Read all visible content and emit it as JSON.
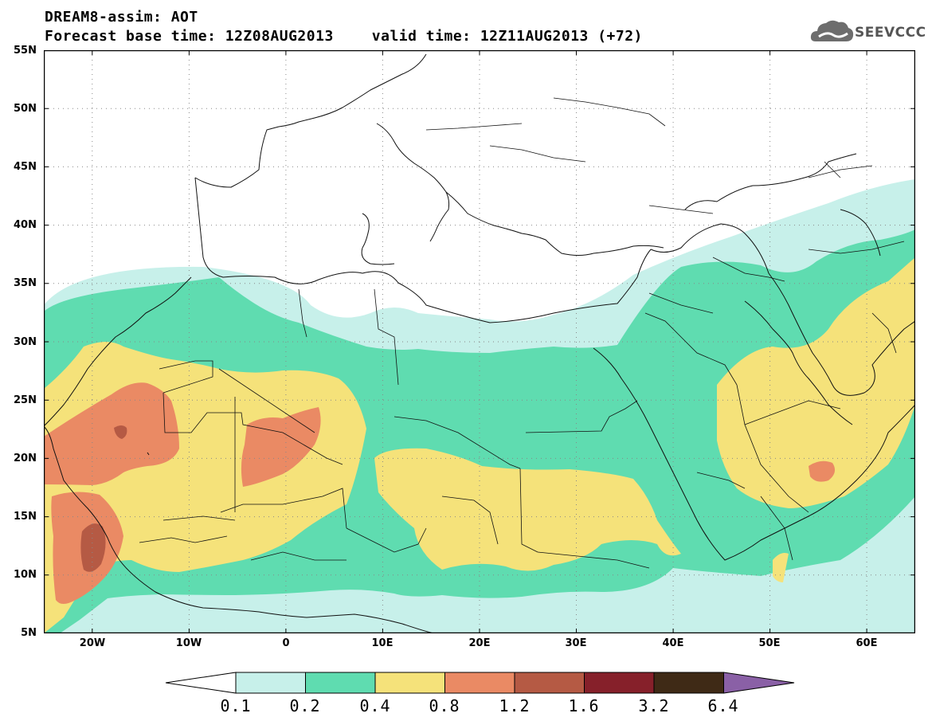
{
  "title": {
    "line1": "DREAM8-assim: AOT",
    "line2_left": "Forecast base time: 12Z08AUG2013",
    "line2_right": "valid time: 12Z11AUG2013 (+72)"
  },
  "logo": {
    "text": "SEEVCCC",
    "icon": "cloud-icon"
  },
  "map": {
    "variable": "AOT",
    "lat_labels": [
      "55N",
      "50N",
      "45N",
      "40N",
      "35N",
      "30N",
      "25N",
      "20N",
      "15N",
      "10N",
      "5N"
    ],
    "lon_labels": [
      "20W",
      "10W",
      "0",
      "10E",
      "20E",
      "30E",
      "40E",
      "50E",
      "60E"
    ],
    "lat_range": [
      5,
      55
    ],
    "lon_range": [
      -25,
      65
    ],
    "grid": "dotted",
    "colors": {
      "level_0_1": "#c7f0ea",
      "level_0_2": "#5fdcb0",
      "level_0_4": "#f5e27a",
      "level_0_8": "#ea8a64",
      "level_1_2": "#b55a44",
      "level_1_6": "#86202a",
      "level_3_2": "#3f2a16",
      "level_6_4": "#8a60a6"
    }
  },
  "colorbar": {
    "labels": [
      "0.1",
      "0.2",
      "0.4",
      "0.8",
      "1.2",
      "1.6",
      "3.2",
      "6.4"
    ],
    "colors": [
      "#ffffff",
      "#c7f0ea",
      "#5fdcb0",
      "#f5e27a",
      "#ea8a64",
      "#b55a44",
      "#86202a",
      "#3f2a16",
      "#8a60a6"
    ]
  }
}
